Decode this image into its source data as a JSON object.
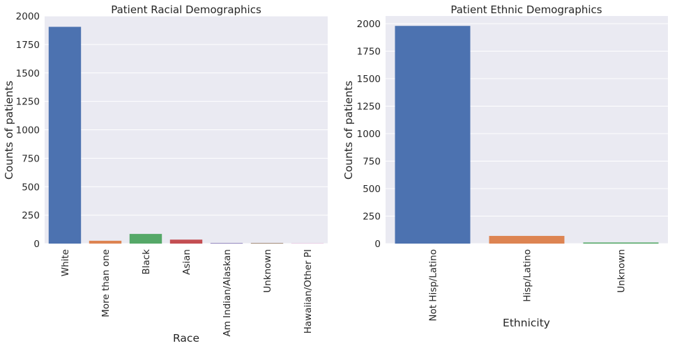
{
  "chart_data": [
    {
      "type": "bar",
      "title": "Patient Racial Demographics",
      "xlabel": "Race",
      "ylabel": "Counts of patients",
      "categories": [
        "White",
        "More than one",
        "Black",
        "Asian",
        "Am Indian/Alaskan",
        "Unknown",
        "Hawaiian/Other PI"
      ],
      "values": [
        1905,
        25,
        85,
        35,
        5,
        5,
        2
      ],
      "colors": [
        "#4c72b0",
        "#dd8452",
        "#55a868",
        "#c44e52",
        "#8172b3",
        "#937860",
        "#da8bc3"
      ],
      "ylim": [
        0,
        2000
      ],
      "yticks": [
        0,
        250,
        500,
        750,
        1000,
        1250,
        1500,
        1750,
        2000
      ],
      "grid": true
    },
    {
      "type": "bar",
      "title": "Patient Ethnic Demographics",
      "xlabel": "Ethnicity",
      "ylabel": "Counts of patients",
      "categories": [
        "Not Hisp/Latino",
        "Hisp/Latino",
        "Unknown"
      ],
      "values": [
        1980,
        70,
        10
      ],
      "colors": [
        "#4c72b0",
        "#dd8452",
        "#55a868"
      ],
      "ylim": [
        0,
        2070
      ],
      "yticks": [
        0,
        250,
        500,
        750,
        1000,
        1250,
        1500,
        1750,
        2000
      ],
      "grid": true
    }
  ]
}
